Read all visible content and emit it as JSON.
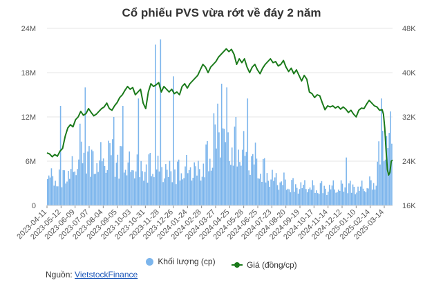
{
  "chart_data": {
    "type": "bar+line",
    "title": "Cổ phiếu PVS vừa rớt về đáy 2 năm",
    "left_axis": {
      "ticks": [
        "0",
        "6M",
        "12M",
        "18M",
        "24M"
      ],
      "range": [
        0,
        24000000
      ]
    },
    "right_axis": {
      "ticks": [
        "16K",
        "24K",
        "32K",
        "40K",
        "48K"
      ],
      "range": [
        16000,
        48000
      ]
    },
    "x_tick_labels": [
      "2023-04-11",
      "2023-05-12",
      "2023-06-09",
      "2023-07-07",
      "2023-08-04",
      "2023-09-05",
      "2023-10-03",
      "2023-10-31",
      "2023-11-28",
      "2023-12-26",
      "2024-01-24",
      "2024-02-28",
      "2024-03-27",
      "2024-04-25",
      "2024-05-28",
      "2024-06-25",
      "2024-07-23",
      "2024-08-20",
      "2024-09-19",
      "2024-10-17",
      "2024-11-14",
      "2024-12-12",
      "2025-01-10",
      "2025-02-14",
      "2025-03-14"
    ],
    "series": [
      {
        "name": "Khối lượng (cp)",
        "kind": "bar",
        "axis": "left",
        "color": "#7cb5ec",
        "points": [
          [
            0,
            6.5
          ],
          [
            3,
            4.0
          ],
          [
            6,
            3.5
          ],
          [
            9,
            5.0
          ],
          [
            12,
            4.2
          ],
          [
            15,
            5.5
          ],
          [
            18,
            4.8
          ],
          [
            22,
            6.5
          ],
          [
            25,
            9.0
          ],
          [
            28,
            7.0
          ],
          [
            31,
            8.0
          ],
          [
            34,
            6.5
          ],
          [
            37,
            7.5
          ],
          [
            40,
            6.0
          ],
          [
            43,
            8.0
          ],
          [
            46,
            6.5
          ],
          [
            49,
            9.0
          ],
          [
            52,
            7.0
          ],
          [
            55,
            6.5
          ],
          [
            58,
            7.5
          ],
          [
            61,
            6.0
          ],
          [
            64,
            5.5
          ],
          [
            68,
            6.5
          ],
          [
            71,
            5.0
          ],
          [
            74,
            6.0
          ],
          [
            77,
            5.5
          ],
          [
            80,
            6.5
          ],
          [
            84,
            5.0
          ],
          [
            88,
            6.0
          ],
          [
            92,
            4.8
          ],
          [
            96,
            5.5
          ],
          [
            100,
            5.0
          ],
          [
            104,
            6.0
          ],
          [
            108,
            5.2
          ],
          [
            112,
            5.8
          ],
          [
            116,
            5.0
          ],
          [
            120,
            6.5
          ],
          [
            124,
            7.5
          ],
          [
            128,
            8.5
          ],
          [
            131,
            9.5
          ],
          [
            134,
            10.5
          ],
          [
            137,
            11.0
          ],
          [
            140,
            10.0
          ],
          [
            143,
            9.5
          ],
          [
            146,
            8.5
          ],
          [
            149,
            9.0
          ],
          [
            152,
            8.0
          ],
          [
            155,
            7.0
          ],
          [
            158,
            7.5
          ],
          [
            162,
            6.0
          ],
          [
            166,
            5.5
          ],
          [
            170,
            4.5
          ],
          [
            174,
            4.0
          ],
          [
            178,
            3.8
          ],
          [
            182,
            3.5
          ],
          [
            186,
            3.2
          ],
          [
            190,
            3.0
          ],
          [
            195,
            2.8
          ],
          [
            200,
            3.0
          ],
          [
            205,
            2.6
          ],
          [
            210,
            2.8
          ],
          [
            215,
            2.5
          ],
          [
            220,
            2.8
          ],
          [
            225,
            2.6
          ],
          [
            230,
            3.0
          ],
          [
            235,
            2.7
          ],
          [
            240,
            2.5
          ],
          [
            245,
            3.0
          ],
          [
            250,
            3.2
          ],
          [
            252,
            3.5
          ],
          [
            254,
            6.0
          ],
          [
            256,
            9.0
          ],
          [
            258,
            10.0
          ]
        ],
        "spikes": [
          [
            10,
            13.5
          ],
          [
            29,
            16.0
          ],
          [
            51,
            12.0
          ],
          [
            58,
            13.5
          ],
          [
            70,
            14.5
          ],
          [
            83,
            21.8
          ],
          [
            87,
            22.5
          ],
          [
            97,
            17.5
          ],
          [
            128,
            12.5
          ],
          [
            131,
            13.8
          ],
          [
            134,
            16.5
          ],
          [
            138,
            16.0
          ],
          [
            145,
            12.0
          ],
          [
            154,
            14.5
          ],
          [
            230,
            6.5
          ],
          [
            257,
            14.5
          ]
        ],
        "note": "volume values in millions of shares"
      },
      {
        "name": "Giá (đồng/cp)",
        "kind": "line",
        "axis": "right",
        "color": "#1a7a1a",
        "points": [
          [
            0,
            25.5
          ],
          [
            2,
            25.3
          ],
          [
            4,
            24.8
          ],
          [
            6,
            25.2
          ],
          [
            8,
            24.9
          ],
          [
            10,
            25.8
          ],
          [
            12,
            26.3
          ],
          [
            14,
            28.5
          ],
          [
            16,
            30.0
          ],
          [
            18,
            30.6
          ],
          [
            20,
            30.2
          ],
          [
            22,
            31.5
          ],
          [
            24,
            32.0
          ],
          [
            26,
            33.0
          ],
          [
            28,
            32.3
          ],
          [
            30,
            32.6
          ],
          [
            32,
            33.5
          ],
          [
            34,
            32.8
          ],
          [
            36,
            32.2
          ],
          [
            38,
            32.5
          ],
          [
            40,
            33.0
          ],
          [
            42,
            33.5
          ],
          [
            44,
            33.8
          ],
          [
            46,
            34.5
          ],
          [
            48,
            33.5
          ],
          [
            50,
            33.2
          ],
          [
            52,
            34.0
          ],
          [
            54,
            34.6
          ],
          [
            56,
            35.5
          ],
          [
            58,
            36.0
          ],
          [
            60,
            36.8
          ],
          [
            62,
            37.5
          ],
          [
            64,
            37.0
          ],
          [
            66,
            37.3
          ],
          [
            68,
            36.0
          ],
          [
            70,
            36.5
          ],
          [
            72,
            37.0
          ],
          [
            74,
            34.5
          ],
          [
            76,
            33.5
          ],
          [
            78,
            36.5
          ],
          [
            80,
            38.0
          ],
          [
            82,
            37.5
          ],
          [
            84,
            37.8
          ],
          [
            86,
            38.2
          ],
          [
            88,
            36.5
          ],
          [
            90,
            37.5
          ],
          [
            92,
            37.0
          ],
          [
            94,
            36.5
          ],
          [
            96,
            37.0
          ],
          [
            98,
            36.2
          ],
          [
            100,
            36.5
          ],
          [
            102,
            36.0
          ],
          [
            104,
            37.5
          ],
          [
            106,
            38.0
          ],
          [
            108,
            37.2
          ],
          [
            110,
            38.0
          ],
          [
            112,
            38.5
          ],
          [
            114,
            39.0
          ],
          [
            116,
            39.5
          ],
          [
            118,
            40.5
          ],
          [
            120,
            41.5
          ],
          [
            122,
            41.0
          ],
          [
            124,
            40.0
          ],
          [
            126,
            41.0
          ],
          [
            128,
            41.5
          ],
          [
            130,
            42.0
          ],
          [
            132,
            42.8
          ],
          [
            134,
            43.3
          ],
          [
            136,
            43.8
          ],
          [
            138,
            44.3
          ],
          [
            140,
            43.8
          ],
          [
            142,
            44.2
          ],
          [
            144,
            43.3
          ],
          [
            146,
            41.5
          ],
          [
            148,
            42.5
          ],
          [
            150,
            41.8
          ],
          [
            152,
            42.5
          ],
          [
            154,
            41.0
          ],
          [
            156,
            40.0
          ],
          [
            158,
            41.0
          ],
          [
            160,
            41.5
          ],
          [
            162,
            40.5
          ],
          [
            164,
            39.8
          ],
          [
            166,
            40.8
          ],
          [
            168,
            41.5
          ],
          [
            170,
            42.0
          ],
          [
            172,
            42.5
          ],
          [
            174,
            41.8
          ],
          [
            176,
            42.0
          ],
          [
            178,
            41.2
          ],
          [
            180,
            41.5
          ],
          [
            182,
            42.2
          ],
          [
            184,
            41.0
          ],
          [
            186,
            40.2
          ],
          [
            188,
            40.8
          ],
          [
            190,
            39.8
          ],
          [
            192,
            40.5
          ],
          [
            194,
            39.5
          ],
          [
            196,
            38.5
          ],
          [
            198,
            39.5
          ],
          [
            200,
            38.8
          ],
          [
            202,
            36.5
          ],
          [
            204,
            36.2
          ],
          [
            206,
            35.5
          ],
          [
            208,
            36.0
          ],
          [
            210,
            35.8
          ],
          [
            212,
            34.5
          ],
          [
            214,
            33.3
          ],
          [
            216,
            34.0
          ],
          [
            218,
            33.8
          ],
          [
            220,
            34.0
          ],
          [
            222,
            33.6
          ],
          [
            224,
            33.9
          ],
          [
            226,
            33.4
          ],
          [
            228,
            33.8
          ],
          [
            230,
            33.4
          ],
          [
            232,
            32.8
          ],
          [
            234,
            33.2
          ],
          [
            236,
            32.5
          ],
          [
            238,
            32.0
          ],
          [
            240,
            33.2
          ],
          [
            242,
            33.6
          ],
          [
            244,
            33.5
          ],
          [
            246,
            34.3
          ],
          [
            248,
            35.0
          ],
          [
            250,
            34.5
          ],
          [
            252,
            34.0
          ],
          [
            254,
            33.8
          ],
          [
            256,
            33.2
          ],
          [
            258,
            33.3
          ],
          [
            259,
            32.5
          ],
          [
            260,
            30.0
          ],
          [
            261,
            26.0
          ],
          [
            262,
            22.5
          ],
          [
            263,
            21.5
          ],
          [
            264,
            22.0
          ],
          [
            265,
            24.0
          ],
          [
            266,
            24.2
          ]
        ],
        "note": "price values in thousands of dong"
      }
    ],
    "legend_position": "bottom-center",
    "grid": true
  },
  "source": {
    "label": "Nguồn:",
    "link_text": "VietstockFinance"
  },
  "colors": {
    "volume": "#7cb5ec",
    "price": "#1a7a1a",
    "grid": "#e6e6e6",
    "link": "#1a55b8"
  }
}
